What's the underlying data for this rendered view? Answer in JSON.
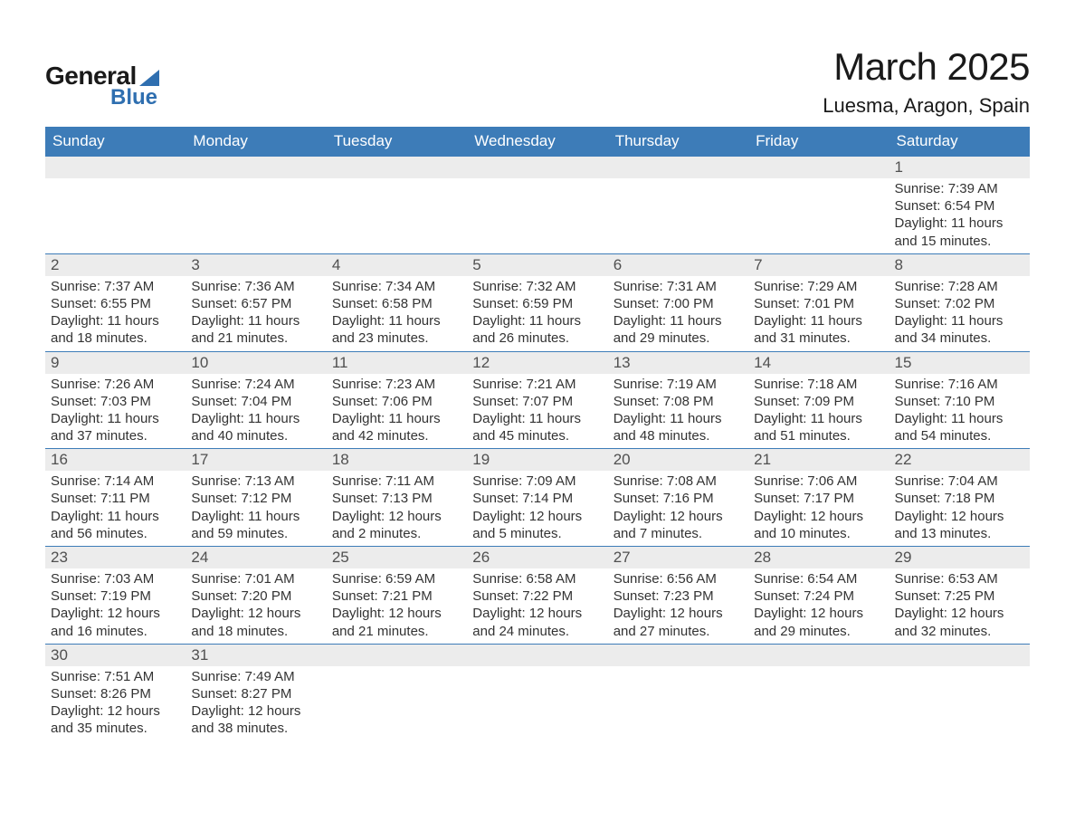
{
  "logo": {
    "word1": "General",
    "word2": "Blue",
    "text_color": "#1a1a1a",
    "accent_color": "#2f6fb0"
  },
  "title": {
    "month": "March 2025",
    "location": "Luesma, Aragon, Spain",
    "month_fontsize": 42,
    "location_fontsize": 22
  },
  "colors": {
    "header_bg": "#3d7cb8",
    "header_text": "#ffffff",
    "daynum_bg": "#ececec",
    "daynum_text": "#505050",
    "body_text": "#333333",
    "row_border": "#3d7cb8",
    "page_bg": "#ffffff"
  },
  "typography": {
    "family": "Arial",
    "header_fontsize": 17,
    "daynum_fontsize": 17,
    "body_fontsize": 15
  },
  "daynames": [
    "Sunday",
    "Monday",
    "Tuesday",
    "Wednesday",
    "Thursday",
    "Friday",
    "Saturday"
  ],
  "labels": {
    "sunrise": "Sunrise:",
    "sunset": "Sunset:",
    "daylight": "Daylight:"
  },
  "weeks": [
    [
      null,
      null,
      null,
      null,
      null,
      null,
      {
        "n": "1",
        "sunrise": "7:39 AM",
        "sunset": "6:54 PM",
        "daylight": "11 hours and 15 minutes."
      }
    ],
    [
      {
        "n": "2",
        "sunrise": "7:37 AM",
        "sunset": "6:55 PM",
        "daylight": "11 hours and 18 minutes."
      },
      {
        "n": "3",
        "sunrise": "7:36 AM",
        "sunset": "6:57 PM",
        "daylight": "11 hours and 21 minutes."
      },
      {
        "n": "4",
        "sunrise": "7:34 AM",
        "sunset": "6:58 PM",
        "daylight": "11 hours and 23 minutes."
      },
      {
        "n": "5",
        "sunrise": "7:32 AM",
        "sunset": "6:59 PM",
        "daylight": "11 hours and 26 minutes."
      },
      {
        "n": "6",
        "sunrise": "7:31 AM",
        "sunset": "7:00 PM",
        "daylight": "11 hours and 29 minutes."
      },
      {
        "n": "7",
        "sunrise": "7:29 AM",
        "sunset": "7:01 PM",
        "daylight": "11 hours and 31 minutes."
      },
      {
        "n": "8",
        "sunrise": "7:28 AM",
        "sunset": "7:02 PM",
        "daylight": "11 hours and 34 minutes."
      }
    ],
    [
      {
        "n": "9",
        "sunrise": "7:26 AM",
        "sunset": "7:03 PM",
        "daylight": "11 hours and 37 minutes."
      },
      {
        "n": "10",
        "sunrise": "7:24 AM",
        "sunset": "7:04 PM",
        "daylight": "11 hours and 40 minutes."
      },
      {
        "n": "11",
        "sunrise": "7:23 AM",
        "sunset": "7:06 PM",
        "daylight": "11 hours and 42 minutes."
      },
      {
        "n": "12",
        "sunrise": "7:21 AM",
        "sunset": "7:07 PM",
        "daylight": "11 hours and 45 minutes."
      },
      {
        "n": "13",
        "sunrise": "7:19 AM",
        "sunset": "7:08 PM",
        "daylight": "11 hours and 48 minutes."
      },
      {
        "n": "14",
        "sunrise": "7:18 AM",
        "sunset": "7:09 PM",
        "daylight": "11 hours and 51 minutes."
      },
      {
        "n": "15",
        "sunrise": "7:16 AM",
        "sunset": "7:10 PM",
        "daylight": "11 hours and 54 minutes."
      }
    ],
    [
      {
        "n": "16",
        "sunrise": "7:14 AM",
        "sunset": "7:11 PM",
        "daylight": "11 hours and 56 minutes."
      },
      {
        "n": "17",
        "sunrise": "7:13 AM",
        "sunset": "7:12 PM",
        "daylight": "11 hours and 59 minutes."
      },
      {
        "n": "18",
        "sunrise": "7:11 AM",
        "sunset": "7:13 PM",
        "daylight": "12 hours and 2 minutes."
      },
      {
        "n": "19",
        "sunrise": "7:09 AM",
        "sunset": "7:14 PM",
        "daylight": "12 hours and 5 minutes."
      },
      {
        "n": "20",
        "sunrise": "7:08 AM",
        "sunset": "7:16 PM",
        "daylight": "12 hours and 7 minutes."
      },
      {
        "n": "21",
        "sunrise": "7:06 AM",
        "sunset": "7:17 PM",
        "daylight": "12 hours and 10 minutes."
      },
      {
        "n": "22",
        "sunrise": "7:04 AM",
        "sunset": "7:18 PM",
        "daylight": "12 hours and 13 minutes."
      }
    ],
    [
      {
        "n": "23",
        "sunrise": "7:03 AM",
        "sunset": "7:19 PM",
        "daylight": "12 hours and 16 minutes."
      },
      {
        "n": "24",
        "sunrise": "7:01 AM",
        "sunset": "7:20 PM",
        "daylight": "12 hours and 18 minutes."
      },
      {
        "n": "25",
        "sunrise": "6:59 AM",
        "sunset": "7:21 PM",
        "daylight": "12 hours and 21 minutes."
      },
      {
        "n": "26",
        "sunrise": "6:58 AM",
        "sunset": "7:22 PM",
        "daylight": "12 hours and 24 minutes."
      },
      {
        "n": "27",
        "sunrise": "6:56 AM",
        "sunset": "7:23 PM",
        "daylight": "12 hours and 27 minutes."
      },
      {
        "n": "28",
        "sunrise": "6:54 AM",
        "sunset": "7:24 PM",
        "daylight": "12 hours and 29 minutes."
      },
      {
        "n": "29",
        "sunrise": "6:53 AM",
        "sunset": "7:25 PM",
        "daylight": "12 hours and 32 minutes."
      }
    ],
    [
      {
        "n": "30",
        "sunrise": "7:51 AM",
        "sunset": "8:26 PM",
        "daylight": "12 hours and 35 minutes."
      },
      {
        "n": "31",
        "sunrise": "7:49 AM",
        "sunset": "8:27 PM",
        "daylight": "12 hours and 38 minutes."
      },
      null,
      null,
      null,
      null,
      null
    ]
  ]
}
